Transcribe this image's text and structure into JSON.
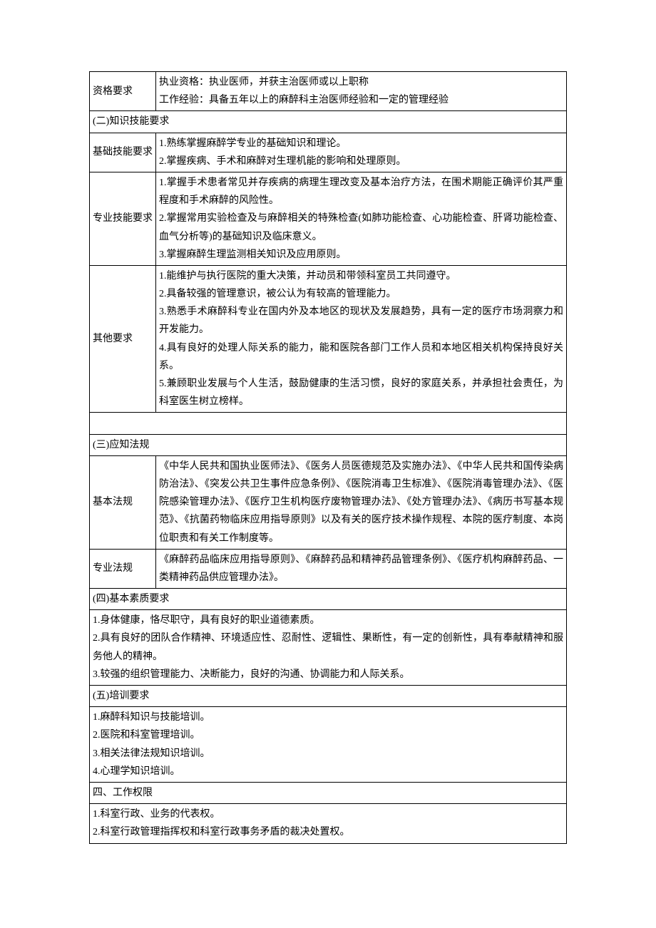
{
  "row1": {
    "label": "资格要求",
    "content": "执业资格：执业医师，并获主治医师或以上职称\n工作经验：具备五年以上的麻醉科主治医师经验和一定的管理经验"
  },
  "section2": {
    "header": "(二)知识技能要求",
    "rows": {
      "basic": {
        "label": "基础技能要求",
        "content": "1.熟练掌握麻醉学专业的基础知识和理论。\n2.掌握疾病、手术和麻醉对生理机能的影响和处理原则。"
      },
      "professional": {
        "label": "专业技能要求",
        "content": "1.掌握手术患者常见并存疾病的病理生理改变及基本治疗方法，在围术期能正确评价其严重程度和手术麻醉的风险性。\n2.掌握常用实验检查及与麻醉相关的特殊检查(如肺功能检查、心功能检查、肝肾功能检查、血气分析等)的基础知识及临床意义。\n3.掌握麻醉生理监测相关知识及应用原则。"
      },
      "other": {
        "label": "其他要求",
        "content": "1.能维护与执行医院的重大决策，并动员和带领科室员工共同遵守。\n2.具备较强的管理意识，被公认为有较高的管理能力。\n3.熟悉手术麻醉科专业在国内外及本地区的现状及发展趋势，具有一定的医疗市场洞察力和开发能力。\n4.具有良好的处理人际关系的能力，能和医院各部门工作人员和本地区相关机构保持良好关系。\n5.兼顾职业发展与个人生活，鼓励健康的生活习惯，良好的家庭关系，并承担社会责任，为科室医生树立榜样。"
      }
    }
  },
  "section3": {
    "header": "(三)应知法规",
    "rows": {
      "basic_law": {
        "label": "基本法规",
        "content": "《中华人民共和国执业医师法》、《医务人员医德规范及实施办法》、《中华人民共和国传染病防治法》、《突发公共卫生事件应急条例》、《医院消毒卫生标准》、《医院消毒管理办法》、《医院感染管理办法》、《医疗卫生机构医疗废物管理办法》、《处方管理办法》、《病历书写基本规范》、《抗菌药物临床应用指导原则》以及有关的医疗技术操作规程、本院的医疗制度、本岗位职责和有关工作制度等。"
      },
      "prof_law": {
        "label": "专业法规",
        "content": "《麻醉药品临床应用指导原则》、《麻醉药品和精神药品管理条例》、《医疗机构麻醉药品、一类精神药品供应管理办法》。"
      }
    }
  },
  "section4": {
    "header": "(四)基本素质要求",
    "content": "1.身体健康，恪尽职守，具有良好的职业道德素质。\n2.具有良好的团队合作精神、环境适应性、忍耐性、逻辑性、果断性，有一定的创新性，具有奉献精神和服务他人的精神。\n3.较强的组织管理能力、决断能力，良好的沟通、协调能力和人际关系。"
  },
  "section5": {
    "header": "(五)培训要求",
    "content": "1.麻醉科知识与技能培训。\n2.医院和科室管理培训。\n3.相关法律法规知识培训。\n4.心理学知识培训。"
  },
  "section6": {
    "header": "四、工作权限",
    "content": "1.科室行政、业务的代表权。\n2.科室行政管理指挥权和科室行政事务矛盾的裁决处置权。"
  }
}
